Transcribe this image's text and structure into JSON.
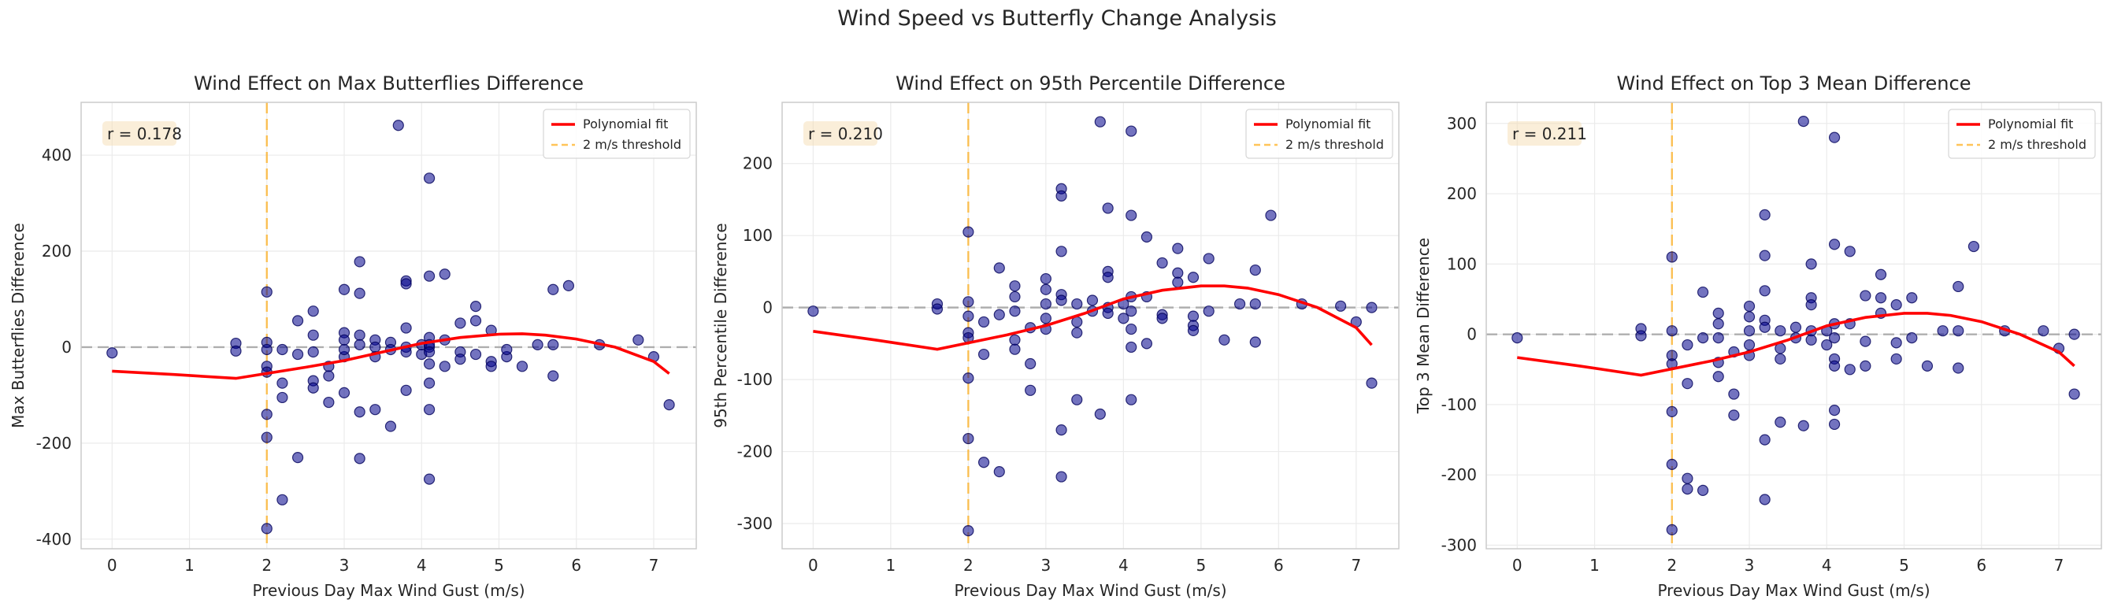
{
  "suptitle": "Wind Speed vs Butterfly Change Analysis",
  "chart_data": [
    {
      "type": "scatter",
      "title": "Wind Effect on Max Butterflies Difference",
      "xlabel": "Previous Day Max Wind Gust (m/s)",
      "ylabel": "Max Butterflies Difference",
      "xlim": [
        -0.4,
        7.55
      ],
      "ylim": [
        -420,
        510
      ],
      "xticks": [
        0,
        1,
        2,
        3,
        4,
        5,
        6,
        7
      ],
      "yticks": [
        -400,
        -200,
        0,
        200,
        400
      ],
      "annotation": "r = 0.178",
      "threshold": 2,
      "legend": {
        "placement": "upper right",
        "entries": [
          "Polynomial fit",
          "2 m/s threshold"
        ]
      },
      "grid": true,
      "points": [
        [
          0,
          -12
        ],
        [
          1.6,
          8
        ],
        [
          1.6,
          -8
        ],
        [
          2,
          115
        ],
        [
          2,
          10
        ],
        [
          2,
          -5
        ],
        [
          2,
          -40
        ],
        [
          2,
          -52
        ],
        [
          2,
          -140
        ],
        [
          2,
          -188
        ],
        [
          2,
          -378
        ],
        [
          2.2,
          -75
        ],
        [
          2.2,
          -105
        ],
        [
          2.2,
          -318
        ],
        [
          2.2,
          -5
        ],
        [
          2.4,
          55
        ],
        [
          2.4,
          -15
        ],
        [
          2.4,
          -230
        ],
        [
          2.6,
          75
        ],
        [
          2.6,
          -70
        ],
        [
          2.6,
          -85
        ],
        [
          2.6,
          -10
        ],
        [
          2.6,
          25
        ],
        [
          2.8,
          -40
        ],
        [
          2.8,
          -115
        ],
        [
          2.8,
          -60
        ],
        [
          3,
          120
        ],
        [
          3,
          30
        ],
        [
          3,
          15
        ],
        [
          3,
          -20
        ],
        [
          3,
          -95
        ],
        [
          3,
          -5
        ],
        [
          3.2,
          178
        ],
        [
          3.2,
          112
        ],
        [
          3.2,
          -135
        ],
        [
          3.2,
          -232
        ],
        [
          3.2,
          25
        ],
        [
          3.2,
          5
        ],
        [
          3.4,
          -130
        ],
        [
          3.4,
          15
        ],
        [
          3.4,
          0
        ],
        [
          3.4,
          -20
        ],
        [
          3.6,
          -165
        ],
        [
          3.6,
          10
        ],
        [
          3.6,
          -5
        ],
        [
          3.7,
          462
        ],
        [
          3.8,
          138
        ],
        [
          3.8,
          132
        ],
        [
          3.8,
          40
        ],
        [
          3.8,
          0
        ],
        [
          3.8,
          -90
        ],
        [
          3.8,
          -10
        ],
        [
          4,
          5
        ],
        [
          4,
          -15
        ],
        [
          4.1,
          352
        ],
        [
          4.1,
          148
        ],
        [
          4.1,
          20
        ],
        [
          4.1,
          0
        ],
        [
          4.1,
          -35
        ],
        [
          4.1,
          -75
        ],
        [
          4.1,
          -130
        ],
        [
          4.1,
          -275
        ],
        [
          4.1,
          5
        ],
        [
          4.1,
          -10
        ],
        [
          4.3,
          152
        ],
        [
          4.3,
          15
        ],
        [
          4.3,
          -40
        ],
        [
          4.5,
          50
        ],
        [
          4.5,
          -10
        ],
        [
          4.5,
          -25
        ],
        [
          4.7,
          85
        ],
        [
          4.7,
          55
        ],
        [
          4.7,
          -15
        ],
        [
          4.9,
          35
        ],
        [
          4.9,
          -30
        ],
        [
          4.9,
          -40
        ],
        [
          5.1,
          -20
        ],
        [
          5.1,
          -5
        ],
        [
          5.3,
          -40
        ],
        [
          5.5,
          5
        ],
        [
          5.7,
          120
        ],
        [
          5.7,
          -60
        ],
        [
          5.7,
          5
        ],
        [
          5.9,
          128
        ],
        [
          6.3,
          5
        ],
        [
          6.8,
          15
        ],
        [
          7,
          -20
        ],
        [
          7.2,
          -120
        ]
      ],
      "fit": [
        [
          0,
          -50
        ],
        [
          0.8,
          -57
        ],
        [
          1.6,
          -65
        ],
        [
          2.5,
          -42
        ],
        [
          3,
          -28
        ],
        [
          3.5,
          -10
        ],
        [
          4,
          8
        ],
        [
          4.5,
          20
        ],
        [
          5,
          27
        ],
        [
          5.3,
          28
        ],
        [
          5.6,
          25
        ],
        [
          6,
          17
        ],
        [
          6.5,
          0
        ],
        [
          7,
          -30
        ],
        [
          7.2,
          -55
        ]
      ]
    },
    {
      "type": "scatter",
      "title": "Wind Effect on 95th Percentile Difference",
      "xlabel": "Previous Day Max Wind Gust (m/s)",
      "ylabel": "95th Percentile Difference",
      "xlim": [
        -0.4,
        7.55
      ],
      "ylim": [
        -335,
        285
      ],
      "xticks": [
        0,
        1,
        2,
        3,
        4,
        5,
        6,
        7
      ],
      "yticks": [
        -300,
        -200,
        -100,
        0,
        100,
        200
      ],
      "annotation": "r = 0.210",
      "threshold": 2,
      "legend": {
        "placement": "upper right",
        "entries": [
          "Polynomial fit",
          "2 m/s threshold"
        ]
      },
      "grid": true,
      "points": [
        [
          0,
          -5
        ],
        [
          1.6,
          5
        ],
        [
          1.6,
          -2
        ],
        [
          2,
          105
        ],
        [
          2,
          8
        ],
        [
          2,
          -12
        ],
        [
          2,
          -35
        ],
        [
          2,
          -42
        ],
        [
          2,
          -98
        ],
        [
          2,
          -182
        ],
        [
          2,
          -310
        ],
        [
          2.2,
          -65
        ],
        [
          2.2,
          -215
        ],
        [
          2.2,
          -20
        ],
        [
          2.4,
          55
        ],
        [
          2.4,
          -10
        ],
        [
          2.4,
          -228
        ],
        [
          2.6,
          30
        ],
        [
          2.6,
          -45
        ],
        [
          2.6,
          -58
        ],
        [
          2.6,
          -5
        ],
        [
          2.6,
          15
        ],
        [
          2.8,
          -28
        ],
        [
          2.8,
          -78
        ],
        [
          2.8,
          -115
        ],
        [
          3,
          40
        ],
        [
          3,
          25
        ],
        [
          3,
          5
        ],
        [
          3,
          -30
        ],
        [
          3,
          -15
        ],
        [
          3.2,
          165
        ],
        [
          3.2,
          155
        ],
        [
          3.2,
          78
        ],
        [
          3.2,
          18
        ],
        [
          3.2,
          10
        ],
        [
          3.2,
          -170
        ],
        [
          3.2,
          -235
        ],
        [
          3.4,
          -128
        ],
        [
          3.4,
          5
        ],
        [
          3.4,
          -20
        ],
        [
          3.4,
          -35
        ],
        [
          3.6,
          10
        ],
        [
          3.6,
          -5
        ],
        [
          3.7,
          258
        ],
        [
          3.7,
          -148
        ],
        [
          3.8,
          138
        ],
        [
          3.8,
          50
        ],
        [
          3.8,
          42
        ],
        [
          3.8,
          0
        ],
        [
          3.8,
          -8
        ],
        [
          4,
          5
        ],
        [
          4,
          -15
        ],
        [
          4.1,
          245
        ],
        [
          4.1,
          128
        ],
        [
          4.1,
          15
        ],
        [
          4.1,
          -5
        ],
        [
          4.1,
          -30
        ],
        [
          4.1,
          -55
        ],
        [
          4.1,
          -128
        ],
        [
          4.3,
          98
        ],
        [
          4.3,
          15
        ],
        [
          4.3,
          -50
        ],
        [
          4.5,
          62
        ],
        [
          4.5,
          -10
        ],
        [
          4.5,
          -15
        ],
        [
          4.7,
          82
        ],
        [
          4.7,
          48
        ],
        [
          4.7,
          35
        ],
        [
          4.9,
          42
        ],
        [
          4.9,
          -12
        ],
        [
          4.9,
          -25
        ],
        [
          4.9,
          -32
        ],
        [
          5.1,
          68
        ],
        [
          5.1,
          -5
        ],
        [
          5.3,
          -45
        ],
        [
          5.5,
          5
        ],
        [
          5.7,
          52
        ],
        [
          5.7,
          -48
        ],
        [
          5.7,
          5
        ],
        [
          5.9,
          128
        ],
        [
          6.3,
          5
        ],
        [
          6.8,
          2
        ],
        [
          7,
          -20
        ],
        [
          7.2,
          -105
        ],
        [
          7.2,
          0
        ]
      ],
      "fit": [
        [
          0,
          -33
        ],
        [
          0.8,
          -45
        ],
        [
          1.6,
          -58
        ],
        [
          2.5,
          -38
        ],
        [
          3,
          -25
        ],
        [
          3.5,
          -8
        ],
        [
          4,
          12
        ],
        [
          4.5,
          24
        ],
        [
          5,
          30
        ],
        [
          5.3,
          30
        ],
        [
          5.6,
          27
        ],
        [
          6,
          18
        ],
        [
          6.5,
          0
        ],
        [
          7,
          -28
        ],
        [
          7.2,
          -52
        ]
      ]
    },
    {
      "type": "scatter",
      "title": "Wind Effect on Top 3 Mean Difference",
      "xlabel": "Previous Day Max Wind Gust (m/s)",
      "ylabel": "Top 3 Mean Difference",
      "xlim": [
        -0.4,
        7.55
      ],
      "ylim": [
        -305,
        330
      ],
      "xticks": [
        0,
        1,
        2,
        3,
        4,
        5,
        6,
        7
      ],
      "yticks": [
        -300,
        -200,
        -100,
        0,
        100,
        200,
        300
      ],
      "annotation": "r = 0.211",
      "threshold": 2,
      "legend": {
        "placement": "upper right",
        "entries": [
          "Polynomial fit",
          "2 m/s threshold"
        ]
      },
      "grid": true,
      "points": [
        [
          0,
          -5
        ],
        [
          1.6,
          8
        ],
        [
          1.6,
          -2
        ],
        [
          2,
          110
        ],
        [
          2,
          5
        ],
        [
          2,
          -30
        ],
        [
          2,
          -42
        ],
        [
          2,
          -110
        ],
        [
          2,
          -185
        ],
        [
          2,
          -278
        ],
        [
          2.2,
          -70
        ],
        [
          2.2,
          -205
        ],
        [
          2.2,
          -220
        ],
        [
          2.2,
          -15
        ],
        [
          2.4,
          60
        ],
        [
          2.4,
          -5
        ],
        [
          2.4,
          -222
        ],
        [
          2.6,
          30
        ],
        [
          2.6,
          -40
        ],
        [
          2.6,
          -60
        ],
        [
          2.6,
          -5
        ],
        [
          2.6,
          15
        ],
        [
          2.8,
          -25
        ],
        [
          2.8,
          -85
        ],
        [
          2.8,
          -115
        ],
        [
          3,
          40
        ],
        [
          3,
          25
        ],
        [
          3,
          5
        ],
        [
          3,
          -30
        ],
        [
          3,
          -15
        ],
        [
          3.2,
          170
        ],
        [
          3.2,
          112
        ],
        [
          3.2,
          62
        ],
        [
          3.2,
          20
        ],
        [
          3.2,
          10
        ],
        [
          3.2,
          -150
        ],
        [
          3.2,
          -235
        ],
        [
          3.4,
          -125
        ],
        [
          3.4,
          5
        ],
        [
          3.4,
          -20
        ],
        [
          3.4,
          -35
        ],
        [
          3.6,
          10
        ],
        [
          3.6,
          -5
        ],
        [
          3.7,
          303
        ],
        [
          3.7,
          -130
        ],
        [
          3.8,
          100
        ],
        [
          3.8,
          52
        ],
        [
          3.8,
          42
        ],
        [
          3.8,
          5
        ],
        [
          3.8,
          -8
        ],
        [
          4,
          5
        ],
        [
          4,
          -15
        ],
        [
          4.1,
          280
        ],
        [
          4.1,
          128
        ],
        [
          4.1,
          15
        ],
        [
          4.1,
          -5
        ],
        [
          4.1,
          -35
        ],
        [
          4.1,
          -45
        ],
        [
          4.1,
          -108
        ],
        [
          4.1,
          -128
        ],
        [
          4.3,
          118
        ],
        [
          4.3,
          15
        ],
        [
          4.3,
          -50
        ],
        [
          4.5,
          55
        ],
        [
          4.5,
          -10
        ],
        [
          4.5,
          -45
        ],
        [
          4.7,
          85
        ],
        [
          4.7,
          52
        ],
        [
          4.7,
          30
        ],
        [
          4.9,
          42
        ],
        [
          4.9,
          -12
        ],
        [
          4.9,
          -35
        ],
        [
          5.1,
          52
        ],
        [
          5.1,
          -5
        ],
        [
          5.3,
          -45
        ],
        [
          5.5,
          5
        ],
        [
          5.7,
          68
        ],
        [
          5.7,
          -48
        ],
        [
          5.7,
          5
        ],
        [
          5.9,
          125
        ],
        [
          6.3,
          5
        ],
        [
          6.8,
          5
        ],
        [
          7,
          -20
        ],
        [
          7.2,
          -85
        ],
        [
          7.2,
          0
        ]
      ],
      "fit": [
        [
          0,
          -33
        ],
        [
          0.8,
          -45
        ],
        [
          1.6,
          -58
        ],
        [
          2.5,
          -38
        ],
        [
          3,
          -25
        ],
        [
          3.5,
          -8
        ],
        [
          4,
          12
        ],
        [
          4.5,
          24
        ],
        [
          5,
          30
        ],
        [
          5.3,
          30
        ],
        [
          5.6,
          27
        ],
        [
          6,
          18
        ],
        [
          6.5,
          0
        ],
        [
          7,
          -25
        ],
        [
          7.2,
          -45
        ]
      ]
    }
  ]
}
